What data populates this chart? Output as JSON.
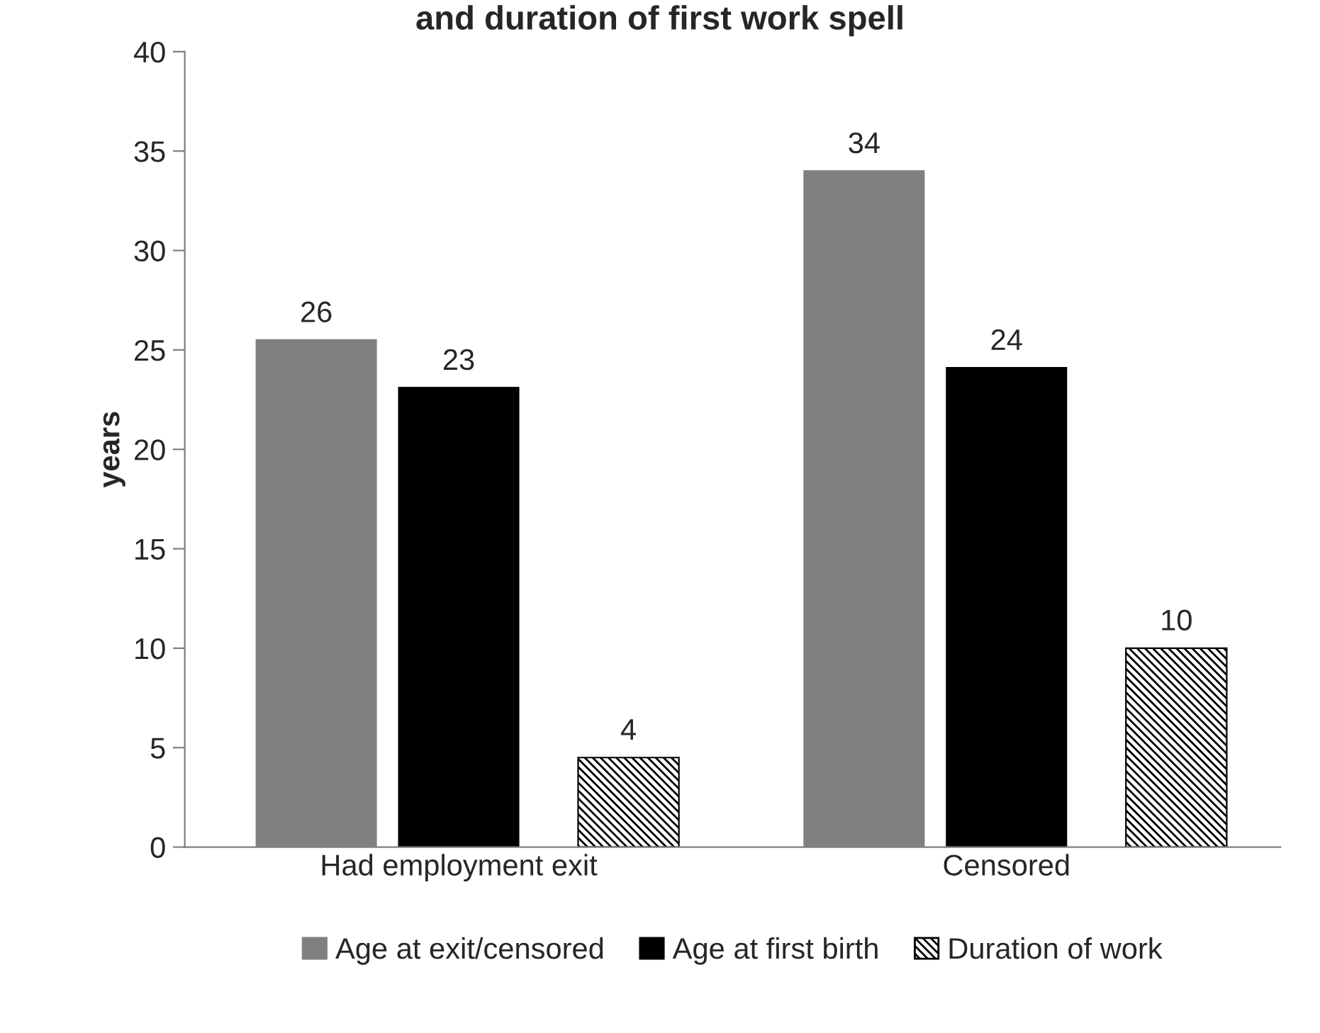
{
  "chart_data": {
    "type": "bar",
    "title": "and duration of first work spell",
    "ylabel": "years",
    "categories": [
      "Had employment exit",
      "Censored"
    ],
    "series": [
      {
        "name": "Age at exit/censored",
        "color": "#808080",
        "values": [
          25.5,
          34
        ],
        "value_labels": [
          "26",
          "34"
        ]
      },
      {
        "name": "Age at first birth",
        "color": "#000000",
        "values": [
          23.1,
          24.1
        ],
        "value_labels": [
          "23",
          "24"
        ]
      },
      {
        "name": "Duration of work",
        "color": "#000000",
        "values": [
          4.5,
          10
        ],
        "value_labels": [
          "4",
          "10"
        ]
      }
    ],
    "ylim": [
      0,
      40
    ],
    "yticks": [
      0,
      5,
      10,
      15,
      20,
      25,
      30,
      35,
      40
    ],
    "grid": false,
    "legend": "bottom"
  }
}
